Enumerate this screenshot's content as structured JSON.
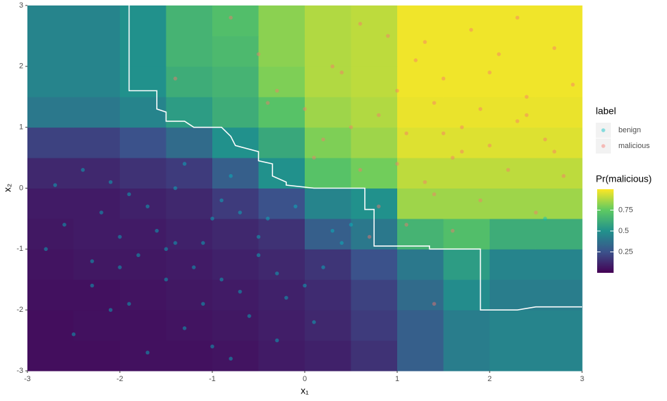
{
  "chart_data": {
    "type": "heatmap",
    "x_label": "x₁",
    "y_label": "x₂",
    "xlim": [
      -3,
      3
    ],
    "ylim": [
      -3,
      3
    ],
    "xticks": [
      -3,
      -2,
      -1,
      0,
      1,
      2,
      3
    ],
    "yticks": [
      -3,
      -2,
      -1,
      0,
      1,
      2,
      3
    ],
    "x_edges": [
      -3,
      -2.5,
      -2,
      -1.5,
      -1,
      -0.5,
      0,
      0.5,
      1,
      1.5,
      2,
      2.5,
      3
    ],
    "y_edges": [
      -3,
      -2.5,
      -2,
      -1.5,
      -1,
      -0.5,
      0,
      0.5,
      1,
      1.5,
      2,
      2.5,
      3
    ],
    "z": [
      [
        0.04,
        0.04,
        0.05,
        0.05,
        0.06,
        0.08,
        0.1,
        0.15,
        0.3,
        0.42,
        0.45,
        0.45
      ],
      [
        0.04,
        0.05,
        0.05,
        0.06,
        0.07,
        0.09,
        0.12,
        0.18,
        0.3,
        0.42,
        0.45,
        0.45
      ],
      [
        0.05,
        0.05,
        0.06,
        0.07,
        0.08,
        0.1,
        0.13,
        0.2,
        0.35,
        0.48,
        0.42,
        0.42
      ],
      [
        0.06,
        0.07,
        0.07,
        0.08,
        0.1,
        0.12,
        0.16,
        0.25,
        0.4,
        0.55,
        0.45,
        0.45
      ],
      [
        0.07,
        0.08,
        0.08,
        0.1,
        0.12,
        0.15,
        0.3,
        0.4,
        0.65,
        0.7,
        0.62,
        0.62
      ],
      [
        0.08,
        0.08,
        0.1,
        0.12,
        0.18,
        0.25,
        0.45,
        0.5,
        0.85,
        0.85,
        0.85,
        0.85
      ],
      [
        0.12,
        0.12,
        0.15,
        0.18,
        0.3,
        0.5,
        0.72,
        0.78,
        0.9,
        0.9,
        0.9,
        0.9
      ],
      [
        0.2,
        0.2,
        0.25,
        0.35,
        0.5,
        0.6,
        0.8,
        0.85,
        0.95,
        0.95,
        0.95,
        0.95
      ],
      [
        0.4,
        0.4,
        0.45,
        0.55,
        0.62,
        0.72,
        0.85,
        0.88,
        0.97,
        0.97,
        0.97,
        0.97
      ],
      [
        0.45,
        0.45,
        0.5,
        0.62,
        0.65,
        0.8,
        0.88,
        0.9,
        0.98,
        0.98,
        0.98,
        0.98
      ],
      [
        0.45,
        0.45,
        0.5,
        0.65,
        0.68,
        0.82,
        0.88,
        0.9,
        0.98,
        0.98,
        0.98,
        0.98
      ],
      [
        0.45,
        0.45,
        0.5,
        0.65,
        0.7,
        0.82,
        0.88,
        0.9,
        0.98,
        0.98,
        0.98,
        0.98
      ]
    ],
    "zlim": [
      0,
      1
    ],
    "zticks": [
      0.25,
      0.5,
      0.75
    ],
    "colormap": [
      "#440154",
      "#3b528b",
      "#21918c",
      "#5ec962",
      "#fde725"
    ],
    "colorbar_title": "Pr(malicious)",
    "legend_title": "label",
    "boundary": {
      "x": [
        -1.9,
        -1.9,
        -1.6,
        -1.6,
        -1.5,
        -1.5,
        -1.3,
        -1.2,
        -0.9,
        -0.8,
        -0.75,
        -0.5,
        -0.5,
        -0.35,
        -0.35,
        -0.2,
        -0.2,
        0.1,
        0.65,
        0.65,
        0.75,
        0.75,
        1.35,
        1.35,
        1.9,
        1.9,
        2.3,
        2.5,
        3
      ],
      "y": [
        3,
        1.6,
        1.6,
        1.3,
        1.25,
        1.1,
        1.1,
        1.0,
        1.0,
        0.85,
        0.7,
        0.6,
        0.45,
        0.4,
        0.2,
        0.1,
        0.05,
        0.0,
        0.0,
        -0.35,
        -0.35,
        -0.95,
        -0.95,
        -1.0,
        -1.0,
        -2.0,
        -2.0,
        -1.95,
        -1.95
      ]
    },
    "series": [
      {
        "name": "benign",
        "color": "#00bfc4",
        "x": [
          -2.6,
          -2.3,
          -2.1,
          -1.9,
          -1.7,
          -1.5,
          -1.3,
          -1.1,
          -0.9,
          -0.7,
          -0.5,
          -0.3,
          -2.8,
          -2.4,
          -2.0,
          -1.6,
          -1.2,
          -0.8,
          -0.4,
          0.0,
          -2.5,
          -2.2,
          -1.8,
          -1.4,
          -1.0,
          -0.6,
          -0.2,
          0.2,
          0.4,
          -1.7,
          -1.3,
          -0.9,
          -0.5,
          -2.7,
          -2.1,
          -1.5,
          -0.7,
          0.1,
          0.5,
          -1.1,
          -0.3,
          -1.9,
          -2.3,
          -0.1,
          0.3,
          -0.8,
          -1.4,
          -2.0,
          -1.0,
          2.6
        ],
        "y": [
          -0.6,
          -1.2,
          0.1,
          -1.9,
          -0.3,
          -1.5,
          -2.3,
          -0.9,
          -0.2,
          -1.7,
          -1.1,
          -2.5,
          -1.0,
          0.3,
          -0.8,
          -0.7,
          -1.3,
          0.2,
          -0.5,
          -1.6,
          -2.4,
          -0.4,
          -1.1,
          0.0,
          -0.5,
          -2.1,
          -1.8,
          -1.3,
          -0.9,
          -2.7,
          0.4,
          -1.5,
          -0.8,
          0.05,
          -2.0,
          -1.0,
          -0.4,
          -2.2,
          -0.6,
          -1.9,
          -1.4,
          -0.1,
          -1.6,
          -0.3,
          -0.7,
          -2.8,
          -0.9,
          -1.3,
          -2.6,
          -0.5
        ]
      },
      {
        "name": "malicious",
        "color": "#f8766d",
        "x": [
          0.9,
          1.2,
          1.5,
          1.8,
          2.1,
          2.4,
          2.7,
          0.8,
          1.1,
          1.4,
          1.7,
          2.0,
          2.3,
          2.6,
          2.9,
          0.3,
          0.0,
          -0.3,
          0.6,
          1.0,
          1.3,
          1.6,
          1.9,
          2.2,
          2.5,
          2.8,
          -0.5,
          0.2,
          0.5,
          0.8,
          1.1,
          1.4,
          1.7,
          2.0,
          2.3,
          0.7,
          1.0,
          1.3,
          1.6,
          2.4,
          -0.8,
          -1.4,
          0.1,
          0.4,
          2.7,
          1.9,
          1.5,
          -0.4,
          0.6,
          1.4
        ],
        "y": [
          2.5,
          2.1,
          1.8,
          2.6,
          2.2,
          1.5,
          2.3,
          1.2,
          0.9,
          1.4,
          1.0,
          0.7,
          1.1,
          0.8,
          1.7,
          2.0,
          1.3,
          1.6,
          2.7,
          0.4,
          0.1,
          0.5,
          -0.2,
          0.3,
          -0.4,
          0.2,
          2.2,
          0.8,
          1.0,
          -0.3,
          -0.6,
          -0.1,
          0.6,
          1.9,
          2.8,
          -0.8,
          1.6,
          2.4,
          -0.7,
          1.2,
          2.8,
          1.8,
          0.5,
          1.9,
          0.6,
          1.3,
          0.9,
          1.4,
          0.3,
          -1.9
        ]
      }
    ]
  }
}
